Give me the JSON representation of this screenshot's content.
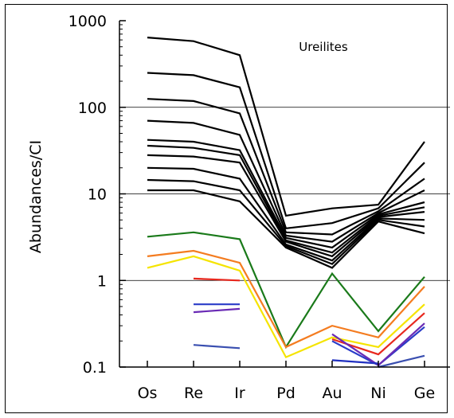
{
  "chart_data": {
    "type": "line",
    "title": "",
    "annotation": "Ureilites",
    "xlabel": "",
    "ylabel": "Abundances/CI",
    "x_scale": "categorical",
    "y_scale": "log",
    "ylim": [
      0.1,
      1000
    ],
    "categories": [
      "Os",
      "Re",
      "Ir",
      "Pd",
      "Au",
      "Ni",
      "Ge"
    ],
    "y_ticks": [
      "0.1",
      "1",
      "10",
      "100",
      "1000"
    ],
    "y_tick_values": [
      0.1,
      1,
      10,
      100,
      1000
    ],
    "gridlines": "major y at 1, 10, 100",
    "series": [
      {
        "color": "#000000",
        "values": [
          640,
          580,
          400,
          5.6,
          6.8,
          7.5,
          40
        ]
      },
      {
        "color": "#000000",
        "values": [
          250,
          235,
          170,
          4.0,
          4.6,
          6.8,
          23
        ]
      },
      {
        "color": "#000000",
        "values": [
          125,
          118,
          85,
          3.6,
          3.4,
          6.3,
          15
        ]
      },
      {
        "color": "#000000",
        "values": [
          70,
          66,
          48,
          3.3,
          2.8,
          6.0,
          11
        ]
      },
      {
        "color": "#000000",
        "values": [
          42,
          40,
          32,
          3.1,
          2.4,
          5.8,
          8.0
        ]
      },
      {
        "color": "#000000",
        "values": [
          36,
          34,
          28,
          2.9,
          2.1,
          5.6,
          7.0
        ]
      },
      {
        "color": "#000000",
        "values": [
          28,
          27,
          23,
          2.8,
          1.9,
          5.4,
          6.2
        ]
      },
      {
        "color": "#000000",
        "values": [
          20,
          19.5,
          15,
          2.6,
          1.7,
          5.2,
          5.0
        ]
      },
      {
        "color": "#000000",
        "values": [
          14.5,
          14,
          11,
          2.5,
          1.55,
          5.0,
          4.2
        ]
      },
      {
        "color": "#000000",
        "values": [
          11,
          11,
          8.2,
          2.4,
          1.4,
          4.8,
          3.5
        ]
      },
      {
        "color": "#1a7a1a",
        "values": [
          3.2,
          3.6,
          3.0,
          0.17,
          1.2,
          0.26,
          1.1
        ]
      },
      {
        "color": "#f47c20",
        "values": [
          1.9,
          2.2,
          1.6,
          0.17,
          0.3,
          0.22,
          0.85
        ]
      },
      {
        "color": "#f5e400",
        "values": [
          1.4,
          1.9,
          1.3,
          0.13,
          0.22,
          0.17,
          0.53
        ]
      },
      {
        "color": "#e8281e",
        "values": [
          null,
          1.05,
          1.0,
          null,
          0.21,
          0.14,
          0.42
        ]
      },
      {
        "color": "#2a3cc8",
        "values": [
          null,
          0.53,
          0.53,
          null,
          0.2,
          0.105,
          0.29
        ]
      },
      {
        "color": "#6a2bb5",
        "values": [
          null,
          0.43,
          0.47,
          null,
          0.24,
          0.105,
          0.32
        ]
      },
      {
        "color": "#3a4fb0",
        "values": [
          null,
          0.18,
          0.165,
          null,
          null,
          0.1,
          0.135
        ]
      },
      {
        "color": "#2030c0",
        "values": [
          null,
          null,
          null,
          null,
          0.12,
          0.11,
          null
        ]
      }
    ]
  }
}
